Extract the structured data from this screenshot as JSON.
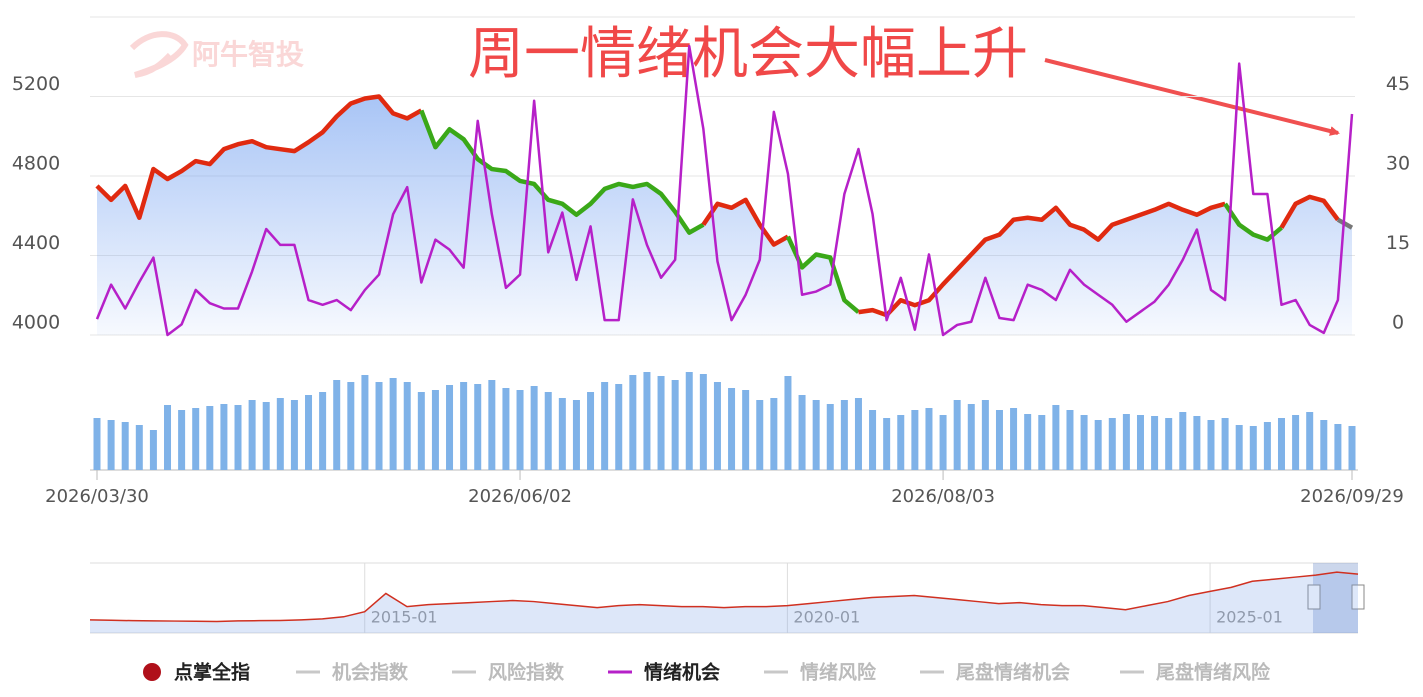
{
  "chart_data": [
    {
      "type": "line",
      "annotation": "周一情绪机会大幅上升",
      "watermark": "阿牛智投",
      "categories": [
        "2026/03/30",
        null,
        null,
        null,
        null,
        null,
        null,
        null,
        null,
        null,
        null,
        null,
        null,
        null,
        null,
        null,
        null,
        null,
        null,
        null,
        null,
        null,
        null,
        null,
        null,
        null,
        null,
        null,
        null,
        null,
        "2026/06/02",
        null,
        null,
        null,
        null,
        null,
        null,
        null,
        null,
        null,
        null,
        null,
        null,
        null,
        null,
        null,
        null,
        null,
        null,
        null,
        null,
        null,
        null,
        null,
        null,
        null,
        null,
        null,
        null,
        null,
        "2026/08/03",
        null,
        null,
        null,
        null,
        null,
        null,
        null,
        null,
        null,
        null,
        null,
        null,
        null,
        null,
        null,
        null,
        null,
        null,
        null,
        null,
        null,
        null,
        null,
        null,
        null,
        null,
        null,
        null,
        "2026/09/29"
      ],
      "ylim": [
        4000,
        5600
      ],
      "yticks": [
        4000,
        4400,
        4800,
        5200
      ],
      "y2lim": [
        0,
        60
      ],
      "y2ticks": [
        0,
        15,
        30,
        45
      ],
      "grid": true,
      "series": [
        {
          "name": "点掌全指",
          "color": "#b0101a",
          "visible": true,
          "area_color": "#6f9ef0",
          "values": [
            4750,
            4680,
            4750,
            4590,
            4835,
            4785,
            4825,
            4875,
            4860,
            4935,
            4960,
            4975,
            4945,
            4935,
            4925,
            4970,
            5020,
            5100,
            5165,
            5190,
            5200,
            5115,
            5090,
            5130,
            4945,
            5035,
            4985,
            4885,
            4835,
            4825,
            4775,
            4760,
            4680,
            4660,
            4605,
            4660,
            4735,
            4760,
            4745,
            4760,
            4710,
            4620,
            4515,
            4555,
            4660,
            4640,
            4680,
            4555,
            4455,
            4495,
            4340,
            4405,
            4390,
            4175,
            4115,
            4125,
            4100,
            4175,
            4150,
            4175,
            4255,
            4330,
            4405,
            4480,
            4505,
            4580,
            4590,
            4580,
            4640,
            4555,
            4530,
            4480,
            4555,
            4580,
            4605,
            4630,
            4660,
            4630,
            4605,
            4640,
            4660,
            4555,
            4505,
            4480,
            4540,
            4660,
            4695,
            4675,
            4580,
            4540
          ],
          "segments": [
            {
              "start": 0,
              "end": 23,
              "color": "#e02a10"
            },
            {
              "start": 23,
              "end": 43,
              "color": "#3aa818"
            },
            {
              "start": 43,
              "end": 49,
              "color": "#e02a10"
            },
            {
              "start": 49,
              "end": 54,
              "color": "#3aa818"
            },
            {
              "start": 54,
              "end": 80,
              "color": "#e02a10"
            },
            {
              "start": 80,
              "end": 84,
              "color": "#3aa818"
            },
            {
              "start": 84,
              "end": 88,
              "color": "#e02a10"
            },
            {
              "start": 88,
              "end": 89,
              "color": "#777777"
            }
          ]
        },
        {
          "name": "机会指数",
          "color": "#c8c8c8",
          "visible": false
        },
        {
          "name": "风险指数",
          "color": "#c8c8c8",
          "visible": false
        },
        {
          "name": "情绪机会",
          "color": "#b620c8",
          "visible": true,
          "axis": "y2",
          "values": [
            3,
            9.5,
            5,
            10,
            14.6,
            0,
            2,
            8.5,
            6,
            5,
            5,
            12,
            20,
            17,
            17,
            6.6,
            5.7,
            6.6,
            4.7,
            8.5,
            11.4,
            22.8,
            27.9,
            9.9,
            18,
            16.1,
            12.7,
            40.4,
            22.8,
            8.9,
            11.4,
            44.2,
            15.6,
            23.1,
            10.4,
            20.5,
            2.8,
            2.8,
            25.6,
            17,
            10.8,
            14.2,
            54.5,
            38.9,
            13.9,
            2.8,
            7.6,
            14.2,
            42.1,
            30.4,
            7.6,
            8.2,
            9.5,
            26.6,
            35.1,
            22.8,
            2.8,
            10.8,
            1,
            15.2,
            0,
            1.9,
            2.5,
            10.8,
            3.2,
            2.8,
            9.5,
            8.5,
            6.6,
            12.3,
            9.5,
            7.6,
            5.7,
            2.5,
            4.4,
            6.3,
            9.5,
            14.2,
            19.9,
            8.5,
            6.6,
            51.2,
            26.6,
            26.6,
            5.7,
            6.6,
            1.9,
            0.4,
            6.6,
            41.7
          ]
        },
        {
          "name": "情绪风险",
          "color": "#c8c8c8",
          "visible": false
        },
        {
          "name": "尾盘情绪机会",
          "color": "#c8c8c8",
          "visible": false
        },
        {
          "name": "尾盘情绪风险",
          "color": "#c8c8c8",
          "visible": false
        }
      ]
    },
    {
      "type": "bar",
      "color": "#7fb2e8",
      "ylim": [
        0,
        110
      ],
      "values": [
        52,
        50,
        48,
        45,
        40,
        65,
        60,
        62,
        64,
        66,
        65,
        70,
        68,
        72,
        70,
        75,
        78,
        90,
        88,
        95,
        88,
        92,
        88,
        78,
        80,
        85,
        88,
        86,
        90,
        82,
        80,
        84,
        78,
        72,
        70,
        78,
        88,
        86,
        95,
        98,
        94,
        90,
        98,
        96,
        88,
        82,
        80,
        70,
        72,
        94,
        75,
        70,
        66,
        70,
        72,
        60,
        52,
        55,
        60,
        62,
        55,
        70,
        66,
        70,
        60,
        62,
        56,
        55,
        65,
        60,
        55,
        50,
        52,
        56,
        55,
        54,
        52,
        58,
        54,
        50,
        52,
        45,
        44,
        48,
        52,
        55,
        58,
        50,
        46,
        44
      ]
    },
    {
      "type": "line",
      "color": "#d03020",
      "ylim": [
        1800,
        5000
      ],
      "categories": [
        null,
        null,
        null,
        null,
        null,
        null,
        null,
        null,
        null,
        null,
        null,
        null,
        null,
        "2015-01",
        null,
        null,
        null,
        null,
        null,
        null,
        null,
        null,
        null,
        null,
        null,
        null,
        null,
        null,
        null,
        null,
        null,
        null,
        null,
        "2020-01",
        null,
        null,
        null,
        null,
        null,
        null,
        null,
        null,
        null,
        null,
        null,
        null,
        null,
        null,
        null,
        null,
        null,
        null,
        null,
        "2025-01",
        null,
        null,
        null,
        null,
        null,
        null,
        null
      ],
      "values": [
        2300,
        2280,
        2260,
        2250,
        2240,
        2230,
        2220,
        2250,
        2260,
        2270,
        2300,
        2350,
        2450,
        2700,
        3600,
        2950,
        3050,
        3100,
        3150,
        3200,
        3250,
        3200,
        3100,
        3000,
        2900,
        3000,
        3050,
        3000,
        2950,
        2950,
        2900,
        2950,
        2950,
        3000,
        3100,
        3200,
        3300,
        3400,
        3450,
        3500,
        3400,
        3300,
        3200,
        3100,
        3150,
        3050,
        3000,
        3000,
        2900,
        2800,
        3000,
        3200,
        3500,
        3700,
        3900,
        4200,
        4300,
        4400,
        4500,
        4650,
        4550
      ]
    }
  ]
}
